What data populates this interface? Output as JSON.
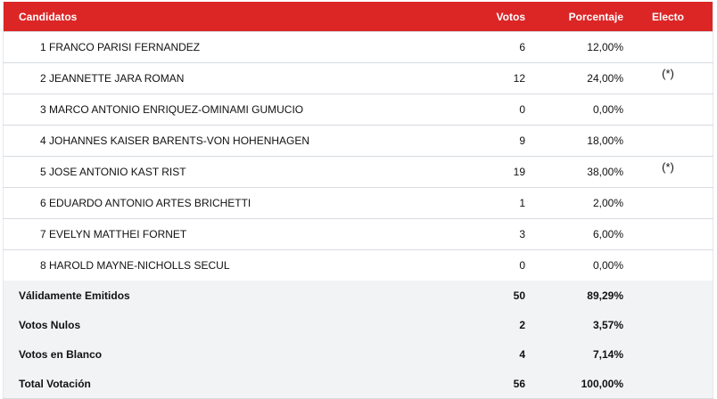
{
  "header": {
    "candidatos": "Candidatos",
    "votos": "Votos",
    "porcentaje": "Porcentaje",
    "electo": "Electo"
  },
  "rows": [
    {
      "name": "1 FRANCO PARISI FERNANDEZ",
      "votos": "6",
      "pct": "12,00%",
      "electo": ""
    },
    {
      "name": "2 JEANNETTE JARA ROMAN",
      "votos": "12",
      "pct": "24,00%",
      "electo": "(*)"
    },
    {
      "name": "3 MARCO ANTONIO ENRIQUEZ-OMINAMI GUMUCIO",
      "votos": "0",
      "pct": "0,00%",
      "electo": ""
    },
    {
      "name": "4 JOHANNES KAISER BARENTS-VON HOHENHAGEN",
      "votos": "9",
      "pct": "18,00%",
      "electo": ""
    },
    {
      "name": "5 JOSE ANTONIO KAST RIST",
      "votos": "19",
      "pct": "38,00%",
      "electo": "(*)"
    },
    {
      "name": "6 EDUARDO ANTONIO ARTES BRICHETTI",
      "votos": "1",
      "pct": "2,00%",
      "electo": ""
    },
    {
      "name": "7 EVELYN MATTHEI FORNET",
      "votos": "3",
      "pct": "6,00%",
      "electo": ""
    },
    {
      "name": "8 HAROLD MAYNE-NICHOLLS SECUL",
      "votos": "0",
      "pct": "0,00%",
      "electo": ""
    }
  ],
  "summary": [
    {
      "label": "Válidamente Emitidos",
      "votos": "50",
      "pct": "89,29%"
    },
    {
      "label": "Votos Nulos",
      "votos": "2",
      "pct": "3,57%"
    },
    {
      "label": "Votos en Blanco",
      "votos": "4",
      "pct": "7,14%"
    },
    {
      "label": "Total Votación",
      "votos": "56",
      "pct": "100,00%"
    }
  ],
  "colors": {
    "header": "#dc2626",
    "summary_bg": "#f2f3f5"
  }
}
